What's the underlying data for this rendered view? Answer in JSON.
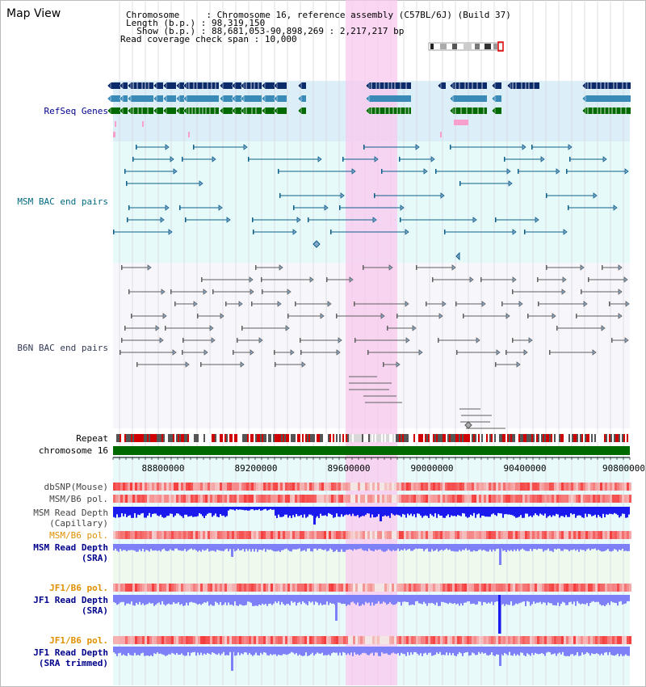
{
  "view_title": "Map View",
  "info": {
    "chromosome_key": "Chromosome     ",
    "chromosome_value": "Chromosome 16, reference assembly (C57BL/6J) (Build 37)",
    "length_key": "Length (b.p.) ",
    "length_value": "98,319,150",
    "show_key": "  Show (b.p.) ",
    "show_value": "88,681,053-90,898,269 : 2,217,217 bp",
    "coverage_key": "Read coverage check span",
    "coverage_value": "10,000"
  },
  "tracks": {
    "refseq": "RefSeq Genes",
    "msm_bac": "MSM BAC end pairs",
    "b6n_bac": "B6N BAC end pairs",
    "repeat": "Repeat",
    "chromosome": "chromosome 16",
    "dbsnp": "dbSNP(Mouse)",
    "msm_b6_pol_1": "MSM/B6 pol.",
    "msm_depth_cap_1": "MSM Read Depth",
    "msm_depth_cap_2": "(Capillary)",
    "msm_b6_pol_2": "MSM/B6 pol.",
    "msm_depth_sra_1": "MSM Read Depth",
    "msm_depth_sra_2": "(SRA)",
    "jf1_b6_pol_1": "JF1/B6 pol.",
    "jf1_depth_sra_1": "JF1 Read Depth",
    "jf1_depth_sra_2": "(SRA)",
    "jf1_b6_pol_2": "JF1/B6 pol.",
    "jf1_depth_trim_1": "JF1 Read Depth",
    "jf1_depth_trim_2": "(SRA trimmed)"
  },
  "axis_ticks": [
    "88800000",
    "89200000",
    "89600000",
    "90000000",
    "90400000",
    "90800000"
  ],
  "colors": {
    "gene_dark": "#0a2a6a",
    "gene_mid": "#3a8ab8",
    "gene_green": "#006a00",
    "msm_bac": "#0d5f8a",
    "b6n_bac": "#606060",
    "highlight": "#f9c8ee",
    "refseq_bg": "#dceff9",
    "msm_bg": "#e6fafa",
    "depth_blue": "#1a1aee",
    "depth_light": "#7d80f7",
    "label_blue": "#00008b",
    "label_teal": "#006a80",
    "label_orange": "#e09000"
  }
}
